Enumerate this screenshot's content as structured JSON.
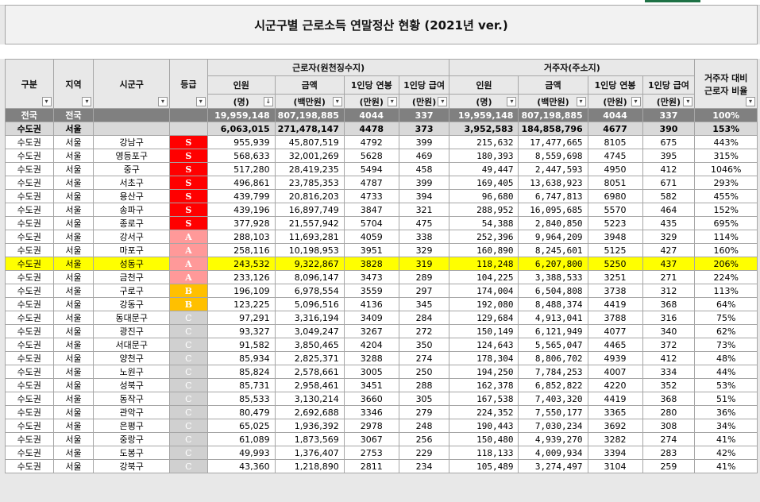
{
  "title": "시군구별 근로소득 연말정산 현황 (2021년 ver.)",
  "headers": {
    "gubun": "구분",
    "region": "지역",
    "sigungu": "시군구",
    "grade": "등급",
    "worker_group": "근로자(원천징수지)",
    "resident_group": "거주자(주소지)",
    "ratio": [
      "거주자 대비",
      "근로자 비율"
    ],
    "people": [
      "인원",
      "(명)"
    ],
    "amount": [
      "금액",
      "(백만원)"
    ],
    "per_salary": [
      "1인당 연봉",
      "(만원)"
    ],
    "per_pay": [
      "1인당 급여",
      "(만원)"
    ]
  },
  "colors": {
    "S": "#ff0000",
    "A": "#ff9999",
    "B": "#ffc000",
    "C": "#d0d0d0",
    "highlight": "#ffff00"
  },
  "rows": [
    {
      "type": "natl",
      "gubun": "전국",
      "region": "전국",
      "sigungu": "",
      "grade": "",
      "w_people": "19,959,148",
      "w_amount": "807,198,885",
      "w_sal": "4044",
      "w_pay": "337",
      "r_people": "19,959,148",
      "r_amount": "807,198,885",
      "r_sal": "4044",
      "r_pay": "337",
      "ratio": "100%"
    },
    {
      "type": "seoul",
      "gubun": "수도권",
      "region": "서울",
      "sigungu": "",
      "grade": "",
      "w_people": "6,063,015",
      "w_amount": "271,478,147",
      "w_sal": "4478",
      "w_pay": "373",
      "r_people": "3,952,583",
      "r_amount": "184,858,796",
      "r_sal": "4677",
      "r_pay": "390",
      "ratio": "153%"
    },
    {
      "type": "",
      "gubun": "수도권",
      "region": "서울",
      "sigungu": "강남구",
      "grade": "S",
      "w_people": "955,939",
      "w_amount": "45,807,519",
      "w_sal": "4792",
      "w_pay": "399",
      "r_people": "215,632",
      "r_amount": "17,477,665",
      "r_sal": "8105",
      "r_pay": "675",
      "ratio": "443%"
    },
    {
      "type": "",
      "gubun": "수도권",
      "region": "서울",
      "sigungu": "영등포구",
      "grade": "S",
      "w_people": "568,633",
      "w_amount": "32,001,269",
      "w_sal": "5628",
      "w_pay": "469",
      "r_people": "180,393",
      "r_amount": "8,559,698",
      "r_sal": "4745",
      "r_pay": "395",
      "ratio": "315%"
    },
    {
      "type": "",
      "gubun": "수도권",
      "region": "서울",
      "sigungu": "중구",
      "grade": "S",
      "w_people": "517,280",
      "w_amount": "28,419,235",
      "w_sal": "5494",
      "w_pay": "458",
      "r_people": "49,447",
      "r_amount": "2,447,593",
      "r_sal": "4950",
      "r_pay": "412",
      "ratio": "1046%"
    },
    {
      "type": "",
      "gubun": "수도권",
      "region": "서울",
      "sigungu": "서초구",
      "grade": "S",
      "w_people": "496,861",
      "w_amount": "23,785,353",
      "w_sal": "4787",
      "w_pay": "399",
      "r_people": "169,405",
      "r_amount": "13,638,923",
      "r_sal": "8051",
      "r_pay": "671",
      "ratio": "293%"
    },
    {
      "type": "",
      "gubun": "수도권",
      "region": "서울",
      "sigungu": "용산구",
      "grade": "S",
      "w_people": "439,799",
      "w_amount": "20,816,203",
      "w_sal": "4733",
      "w_pay": "394",
      "r_people": "96,680",
      "r_amount": "6,747,813",
      "r_sal": "6980",
      "r_pay": "582",
      "ratio": "455%"
    },
    {
      "type": "",
      "gubun": "수도권",
      "region": "서울",
      "sigungu": "송파구",
      "grade": "S",
      "w_people": "439,196",
      "w_amount": "16,897,749",
      "w_sal": "3847",
      "w_pay": "321",
      "r_people": "288,952",
      "r_amount": "16,095,685",
      "r_sal": "5570",
      "r_pay": "464",
      "ratio": "152%"
    },
    {
      "type": "",
      "gubun": "수도권",
      "region": "서울",
      "sigungu": "종로구",
      "grade": "S",
      "w_people": "377,928",
      "w_amount": "21,557,942",
      "w_sal": "5704",
      "w_pay": "475",
      "r_people": "54,388",
      "r_amount": "2,840,850",
      "r_sal": "5223",
      "r_pay": "435",
      "ratio": "695%"
    },
    {
      "type": "",
      "gubun": "수도권",
      "region": "서울",
      "sigungu": "강서구",
      "grade": "A",
      "w_people": "288,103",
      "w_amount": "11,693,281",
      "w_sal": "4059",
      "w_pay": "338",
      "r_people": "252,396",
      "r_amount": "9,964,209",
      "r_sal": "3948",
      "r_pay": "329",
      "ratio": "114%"
    },
    {
      "type": "",
      "gubun": "수도권",
      "region": "서울",
      "sigungu": "마포구",
      "grade": "A",
      "w_people": "258,116",
      "w_amount": "10,198,953",
      "w_sal": "3951",
      "w_pay": "329",
      "r_people": "160,890",
      "r_amount": "8,245,601",
      "r_sal": "5125",
      "r_pay": "427",
      "ratio": "160%"
    },
    {
      "type": "hl",
      "gubun": "수도권",
      "region": "서울",
      "sigungu": "성동구",
      "grade": "A",
      "w_people": "243,532",
      "w_amount": "9,322,867",
      "w_sal": "3828",
      "w_pay": "319",
      "r_people": "118,248",
      "r_amount": "6,207,800",
      "r_sal": "5250",
      "r_pay": "437",
      "ratio": "206%"
    },
    {
      "type": "",
      "gubun": "수도권",
      "region": "서울",
      "sigungu": "금천구",
      "grade": "A",
      "w_people": "233,126",
      "w_amount": "8,096,147",
      "w_sal": "3473",
      "w_pay": "289",
      "r_people": "104,225",
      "r_amount": "3,388,533",
      "r_sal": "3251",
      "r_pay": "271",
      "ratio": "224%"
    },
    {
      "type": "",
      "gubun": "수도권",
      "region": "서울",
      "sigungu": "구로구",
      "grade": "B",
      "w_people": "196,109",
      "w_amount": "6,978,554",
      "w_sal": "3559",
      "w_pay": "297",
      "r_people": "174,004",
      "r_amount": "6,504,808",
      "r_sal": "3738",
      "r_pay": "312",
      "ratio": "113%"
    },
    {
      "type": "",
      "gubun": "수도권",
      "region": "서울",
      "sigungu": "강동구",
      "grade": "B",
      "w_people": "123,225",
      "w_amount": "5,096,516",
      "w_sal": "4136",
      "w_pay": "345",
      "r_people": "192,080",
      "r_amount": "8,488,374",
      "r_sal": "4419",
      "r_pay": "368",
      "ratio": "64%"
    },
    {
      "type": "",
      "gubun": "수도권",
      "region": "서울",
      "sigungu": "동대문구",
      "grade": "C",
      "w_people": "97,291",
      "w_amount": "3,316,194",
      "w_sal": "3409",
      "w_pay": "284",
      "r_people": "129,684",
      "r_amount": "4,913,041",
      "r_sal": "3788",
      "r_pay": "316",
      "ratio": "75%"
    },
    {
      "type": "",
      "gubun": "수도권",
      "region": "서울",
      "sigungu": "광진구",
      "grade": "C",
      "w_people": "93,327",
      "w_amount": "3,049,247",
      "w_sal": "3267",
      "w_pay": "272",
      "r_people": "150,149",
      "r_amount": "6,121,949",
      "r_sal": "4077",
      "r_pay": "340",
      "ratio": "62%"
    },
    {
      "type": "",
      "gubun": "수도권",
      "region": "서울",
      "sigungu": "서대문구",
      "grade": "C",
      "w_people": "91,582",
      "w_amount": "3,850,465",
      "w_sal": "4204",
      "w_pay": "350",
      "r_people": "124,643",
      "r_amount": "5,565,047",
      "r_sal": "4465",
      "r_pay": "372",
      "ratio": "73%"
    },
    {
      "type": "",
      "gubun": "수도권",
      "region": "서울",
      "sigungu": "양천구",
      "grade": "C",
      "w_people": "85,934",
      "w_amount": "2,825,371",
      "w_sal": "3288",
      "w_pay": "274",
      "r_people": "178,304",
      "r_amount": "8,806,702",
      "r_sal": "4939",
      "r_pay": "412",
      "ratio": "48%"
    },
    {
      "type": "",
      "gubun": "수도권",
      "region": "서울",
      "sigungu": "노원구",
      "grade": "C",
      "w_people": "85,824",
      "w_amount": "2,578,661",
      "w_sal": "3005",
      "w_pay": "250",
      "r_people": "194,250",
      "r_amount": "7,784,253",
      "r_sal": "4007",
      "r_pay": "334",
      "ratio": "44%"
    },
    {
      "type": "",
      "gubun": "수도권",
      "region": "서울",
      "sigungu": "성북구",
      "grade": "C",
      "w_people": "85,731",
      "w_amount": "2,958,461",
      "w_sal": "3451",
      "w_pay": "288",
      "r_people": "162,378",
      "r_amount": "6,852,822",
      "r_sal": "4220",
      "r_pay": "352",
      "ratio": "53%"
    },
    {
      "type": "",
      "gubun": "수도권",
      "region": "서울",
      "sigungu": "동작구",
      "grade": "C",
      "w_people": "85,533",
      "w_amount": "3,130,214",
      "w_sal": "3660",
      "w_pay": "305",
      "r_people": "167,538",
      "r_amount": "7,403,320",
      "r_sal": "4419",
      "r_pay": "368",
      "ratio": "51%"
    },
    {
      "type": "",
      "gubun": "수도권",
      "region": "서울",
      "sigungu": "관악구",
      "grade": "C",
      "w_people": "80,479",
      "w_amount": "2,692,688",
      "w_sal": "3346",
      "w_pay": "279",
      "r_people": "224,352",
      "r_amount": "7,550,177",
      "r_sal": "3365",
      "r_pay": "280",
      "ratio": "36%"
    },
    {
      "type": "",
      "gubun": "수도권",
      "region": "서울",
      "sigungu": "은평구",
      "grade": "C",
      "w_people": "65,025",
      "w_amount": "1,936,392",
      "w_sal": "2978",
      "w_pay": "248",
      "r_people": "190,443",
      "r_amount": "7,030,234",
      "r_sal": "3692",
      "r_pay": "308",
      "ratio": "34%"
    },
    {
      "type": "",
      "gubun": "수도권",
      "region": "서울",
      "sigungu": "중랑구",
      "grade": "C",
      "w_people": "61,089",
      "w_amount": "1,873,569",
      "w_sal": "3067",
      "w_pay": "256",
      "r_people": "150,480",
      "r_amount": "4,939,270",
      "r_sal": "3282",
      "r_pay": "274",
      "ratio": "41%"
    },
    {
      "type": "",
      "gubun": "수도권",
      "region": "서울",
      "sigungu": "도봉구",
      "grade": "C",
      "w_people": "49,993",
      "w_amount": "1,376,407",
      "w_sal": "2753",
      "w_pay": "229",
      "r_people": "118,133",
      "r_amount": "4,009,934",
      "r_sal": "3394",
      "r_pay": "283",
      "ratio": "42%"
    },
    {
      "type": "",
      "gubun": "수도권",
      "region": "서울",
      "sigungu": "강북구",
      "grade": "C",
      "w_people": "43,360",
      "w_amount": "1,218,890",
      "w_sal": "2811",
      "w_pay": "234",
      "r_people": "105,489",
      "r_amount": "3,274,497",
      "r_sal": "3104",
      "r_pay": "259",
      "ratio": "41%"
    }
  ]
}
